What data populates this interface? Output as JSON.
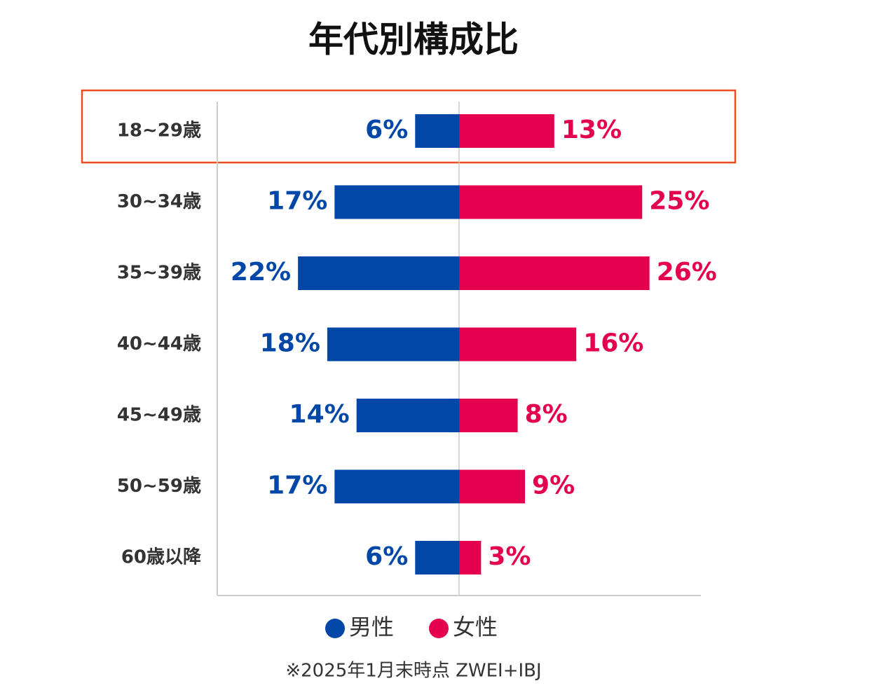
{
  "chart_data": {
    "type": "butterfly",
    "title": "年代別構成比",
    "categories": [
      "18~29歳",
      "30~34歳",
      "35~39歳",
      "40~44歳",
      "45~49歳",
      "50~59歳",
      "60歳以降"
    ],
    "series": [
      {
        "name": "男性",
        "color": "#0047a8",
        "values": [
          6,
          17,
          22,
          18,
          14,
          17,
          6
        ],
        "value_labels": [
          "6%",
          "17%",
          "22%",
          "18%",
          "14%",
          "17%",
          "6%"
        ]
      },
      {
        "name": "女性",
        "color": "#e5004f",
        "values": [
          13,
          25,
          26,
          16,
          8,
          9,
          3
        ],
        "value_labels": [
          "13%",
          "25%",
          "26%",
          "16%",
          "8%",
          "9%",
          "3%"
        ]
      }
    ],
    "note": "※2025年1月末時点 ZWEI+IBJ"
  }
}
